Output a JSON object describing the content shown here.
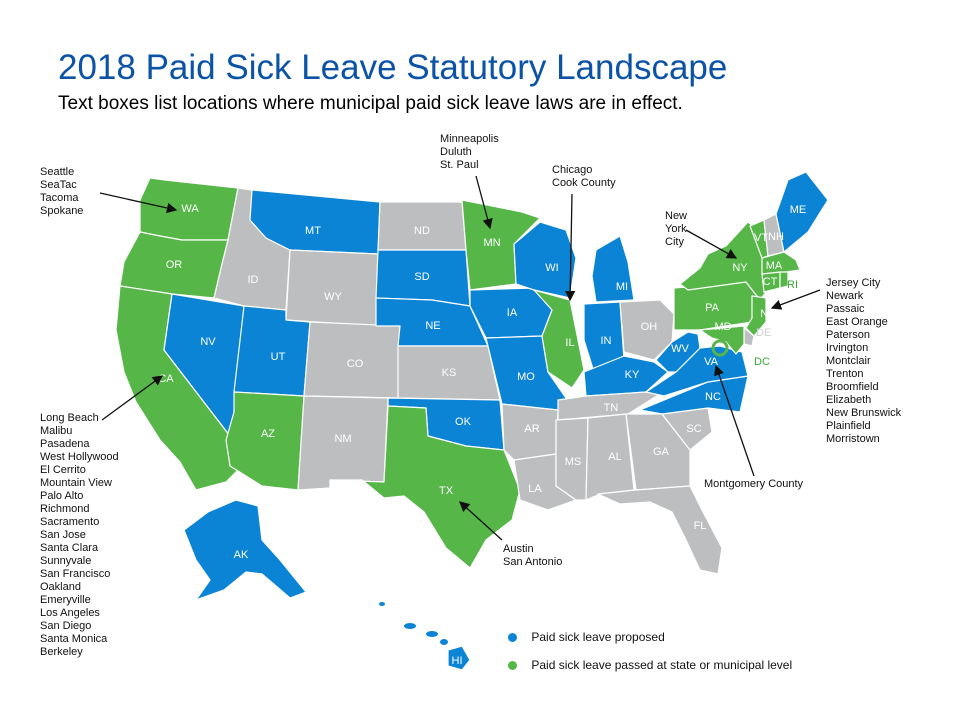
{
  "title": "2018 Paid Sick Leave Statutory Landscape",
  "subtitle": "Text boxes list locations where municipal  paid sick leave laws are in effect.",
  "colors": {
    "proposed": "#0b84d6",
    "passed": "#56b648",
    "none": "#bdbebf",
    "title": "#0b53a6"
  },
  "legend": {
    "proposed": "Paid sick leave proposed",
    "passed": "Paid sick leave passed at state or municipal level"
  },
  "states": {
    "WA": "WA",
    "OR": "OR",
    "CA": "CA",
    "NV": "NV",
    "ID": "ID",
    "MT": "MT",
    "WY": "WY",
    "UT": "UT",
    "AZ": "AZ",
    "CO": "CO",
    "NM": "NM",
    "ND": "ND",
    "SD": "SD",
    "NE": "NE",
    "KS": "KS",
    "OK": "OK",
    "TX": "TX",
    "MN": "MN",
    "IA": "IA",
    "MO": "MO",
    "AR": "AR",
    "LA": "LA",
    "WI": "WI",
    "IL": "IL",
    "MI": "MI",
    "IN": "IN",
    "OH": "OH",
    "KY": "KY",
    "TN": "TN",
    "MS": "MS",
    "AL": "AL",
    "GA": "GA",
    "FL": "FL",
    "SC": "SC",
    "NC": "NC",
    "VA": "VA",
    "WV": "WV",
    "PA": "PA",
    "NY": "NY",
    "VT": "VT",
    "NH": "NH",
    "ME": "ME",
    "MA": "MA",
    "CT": "CT",
    "RI": "RI",
    "NJ": "NJ",
    "DE": "DE",
    "MD": "MD",
    "DC": "DC",
    "AK": "AK",
    "HI": "HI"
  },
  "state_status": {
    "passed": [
      "WA",
      "OR",
      "CA",
      "AZ",
      "TX",
      "MN",
      "IL",
      "PA",
      "NY",
      "VT",
      "MA",
      "CT",
      "RI",
      "NJ",
      "MD",
      "DC"
    ],
    "proposed": [
      "NV",
      "MT",
      "UT",
      "SD",
      "NE",
      "OK",
      "IA",
      "MO",
      "WI",
      "MI",
      "IN",
      "KY",
      "WV",
      "VA",
      "NC",
      "ME",
      "AK",
      "HI"
    ],
    "none": [
      "ID",
      "WY",
      "CO",
      "NM",
      "ND",
      "KS",
      "AR",
      "LA",
      "MS",
      "AL",
      "GA",
      "FL",
      "SC",
      "TN",
      "OH",
      "NH",
      "DE"
    ]
  },
  "boxes": {
    "seattle": [
      "Seattle",
      "SeaTac",
      "Tacoma",
      "Spokane"
    ],
    "minneapolis": [
      "Minneapolis",
      "Duluth",
      "St. Paul"
    ],
    "chicago": [
      "Chicago",
      "Cook County"
    ],
    "newyork": [
      "New",
      "York",
      "City"
    ],
    "newjersey": [
      "Jersey City",
      "Newark",
      "Passaic",
      "East Orange",
      "Paterson",
      "Irvington",
      "Montclair",
      "Trenton",
      "Broomfield",
      "Elizabeth",
      "New Brunswick",
      "Plainfield",
      "Morristown"
    ],
    "california": [
      "Long Beach",
      "Malibu",
      "Pasadena",
      "West Hollywood",
      "El Cerrito",
      "Mountain View",
      "Palo Alto",
      "Richmond",
      "Sacramento",
      "San Jose",
      "Santa Clara",
      "Sunnyvale",
      "San Francisco",
      "Oakland",
      "Emeryville",
      "Los Angeles",
      "San Diego",
      "Santa Monica",
      "Berkeley"
    ],
    "montgomery": [
      "Montgomery County"
    ],
    "texas": [
      "Austin",
      "San Antonio"
    ]
  }
}
